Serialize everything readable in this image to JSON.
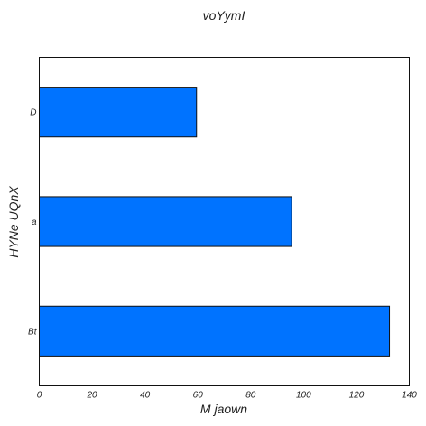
{
  "chart_data": {
    "type": "bar",
    "orientation": "horizontal",
    "title": "voYymI",
    "xlabel": "M jaown",
    "ylabel": "HYNe UQnX",
    "categories": [
      "Bt",
      "a",
      "D"
    ],
    "values": [
      132.5,
      95.5,
      59.5
    ],
    "xlim": [
      0,
      140
    ],
    "xticks": [
      0,
      20,
      40,
      60,
      80,
      100,
      120,
      140
    ],
    "grid": false,
    "bar_color": "#0073ff"
  }
}
